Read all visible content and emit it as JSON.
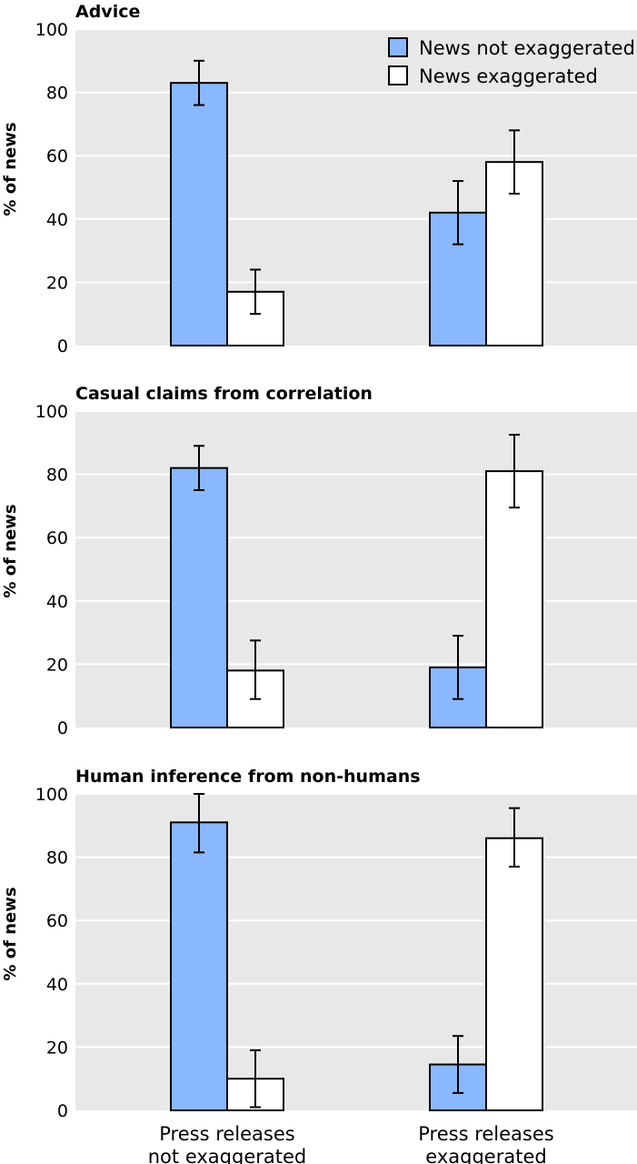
{
  "chart_data": [
    {
      "type": "bar",
      "title": "Advice",
      "ylabel": "% of news",
      "ylim": [
        0,
        100
      ],
      "yticks": [
        "0",
        "20",
        "40",
        "60",
        "80",
        "100"
      ],
      "grid": true,
      "legend_position": "top-right",
      "categories": [
        "Press releases not exaggerated",
        "Press releases exaggerated"
      ],
      "series": [
        {
          "name": "News not exaggerated",
          "color": "#8ab8ff",
          "values": [
            83,
            42
          ],
          "error_low": [
            76,
            32
          ],
          "error_high": [
            90,
            52
          ]
        },
        {
          "name": "News exaggerated",
          "color": "#ffffff",
          "values": [
            17,
            58
          ],
          "error_low": [
            10,
            48
          ],
          "error_high": [
            24,
            68
          ]
        }
      ]
    },
    {
      "type": "bar",
      "title": "Casual claims from correlation",
      "ylabel": "% of news",
      "ylim": [
        0,
        100
      ],
      "yticks": [
        "0",
        "20",
        "40",
        "60",
        "80",
        "100"
      ],
      "grid": true,
      "categories": [
        "Press releases not exaggerated",
        "Press releases exaggerated"
      ],
      "series": [
        {
          "name": "News not exaggerated",
          "color": "#8ab8ff",
          "values": [
            82,
            19
          ],
          "error_low": [
            75,
            9
          ],
          "error_high": [
            89,
            29
          ]
        },
        {
          "name": "News exaggerated",
          "color": "#ffffff",
          "values": [
            18,
            81
          ],
          "error_low": [
            9,
            69.5
          ],
          "error_high": [
            27.5,
            92.5
          ]
        }
      ]
    },
    {
      "type": "bar",
      "title": "Human inference from non-humans",
      "ylabel": "% of news",
      "ylim": [
        0,
        100
      ],
      "yticks": [
        "0",
        "20",
        "40",
        "60",
        "80",
        "100"
      ],
      "grid": true,
      "categories": [
        "Press releases not exaggerated",
        "Press releases exaggerated"
      ],
      "category_labels": [
        [
          "Press releases",
          "not exaggerated"
        ],
        [
          "Press releases",
          "exaggerated"
        ]
      ],
      "series": [
        {
          "name": "News not exaggerated",
          "color": "#8ab8ff",
          "values": [
            91,
            14.5
          ],
          "error_low": [
            81.5,
            5.5
          ],
          "error_high": [
            100,
            23.5
          ]
        },
        {
          "name": "News exaggerated",
          "color": "#ffffff",
          "values": [
            10,
            86
          ],
          "error_low": [
            1,
            77
          ],
          "error_high": [
            19,
            95.5
          ]
        }
      ]
    }
  ]
}
